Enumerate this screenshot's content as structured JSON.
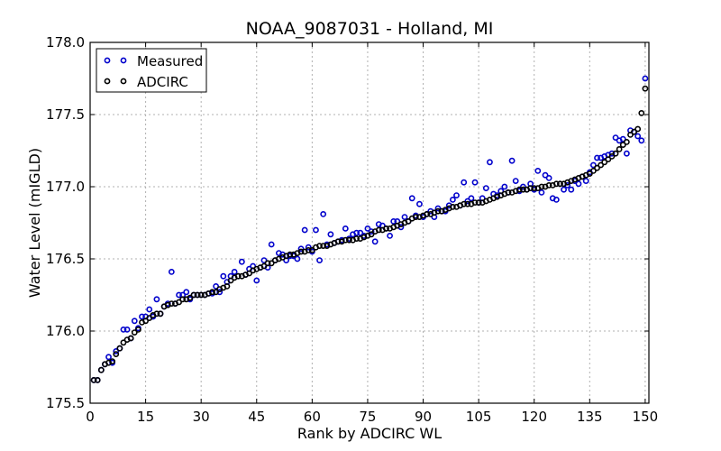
{
  "chart_data": {
    "type": "scatter",
    "title": "NOAA_9087031 - Holland, MI",
    "xlabel": "Rank by ADCIRC WL",
    "ylabel": "Water Level (mIGLD)",
    "xlim": [
      0,
      151
    ],
    "ylim": [
      175.5,
      178.0
    ],
    "xticks": [
      0,
      15,
      30,
      45,
      60,
      75,
      90,
      105,
      120,
      135,
      150
    ],
    "yticks": [
      175.5,
      176.0,
      176.5,
      177.0,
      177.5,
      178.0
    ],
    "ytick_labels": [
      "175.5",
      "176.0",
      "176.5",
      "177.0",
      "177.5",
      "178.0"
    ],
    "grid": true,
    "legend_position": "top-left",
    "series": [
      {
        "name": "Measured",
        "color": "#0000cc",
        "marker": "open-circle",
        "x": [
          1,
          2,
          3,
          4,
          5,
          6,
          7,
          8,
          9,
          10,
          11,
          12,
          13,
          14,
          15,
          16,
          17,
          18,
          19,
          20,
          21,
          22,
          23,
          24,
          25,
          26,
          27,
          28,
          29,
          30,
          31,
          32,
          33,
          34,
          35,
          36,
          37,
          38,
          39,
          40,
          41,
          42,
          43,
          44,
          45,
          46,
          47,
          48,
          49,
          50,
          51,
          52,
          53,
          54,
          55,
          56,
          57,
          58,
          59,
          60,
          61,
          62,
          63,
          64,
          65,
          66,
          67,
          68,
          69,
          70,
          71,
          72,
          73,
          74,
          75,
          76,
          77,
          78,
          79,
          80,
          81,
          82,
          83,
          84,
          85,
          86,
          87,
          88,
          89,
          90,
          91,
          92,
          93,
          94,
          95,
          96,
          97,
          98,
          99,
          100,
          101,
          102,
          103,
          104,
          105,
          106,
          107,
          108,
          109,
          110,
          111,
          112,
          113,
          114,
          115,
          116,
          117,
          118,
          119,
          120,
          121,
          122,
          123,
          124,
          125,
          126,
          127,
          128,
          129,
          130,
          131,
          132,
          133,
          134,
          135,
          136,
          137,
          138,
          139,
          140,
          141,
          142,
          143,
          144,
          145,
          146,
          147,
          148,
          149,
          150
        ],
        "values": [
          175.66,
          175.66,
          175.73,
          175.77,
          175.82,
          175.78,
          175.86,
          175.88,
          176.01,
          176.01,
          175.95,
          176.07,
          176.02,
          176.1,
          176.1,
          176.15,
          176.1,
          176.22,
          176.12,
          176.17,
          176.19,
          176.41,
          176.19,
          176.25,
          176.25,
          176.27,
          176.22,
          176.25,
          176.25,
          176.25,
          176.25,
          176.26,
          176.26,
          176.31,
          176.27,
          176.38,
          176.34,
          176.38,
          176.41,
          176.38,
          176.48,
          176.39,
          176.43,
          176.45,
          176.35,
          176.44,
          176.49,
          176.44,
          176.6,
          176.49,
          176.54,
          176.53,
          176.49,
          176.52,
          176.52,
          176.5,
          176.57,
          176.7,
          176.58,
          176.55,
          176.7,
          176.49,
          176.81,
          176.6,
          176.67,
          176.61,
          176.62,
          176.63,
          176.71,
          176.64,
          176.67,
          176.68,
          176.68,
          176.66,
          176.71,
          176.69,
          176.62,
          176.74,
          176.73,
          176.71,
          176.66,
          176.76,
          176.76,
          176.72,
          176.79,
          176.76,
          176.92,
          176.8,
          176.88,
          176.79,
          176.81,
          176.83,
          176.79,
          176.85,
          176.83,
          176.83,
          176.87,
          176.91,
          176.94,
          176.87,
          177.03,
          176.9,
          176.92,
          177.03,
          176.89,
          176.92,
          176.99,
          177.17,
          176.95,
          176.94,
          176.97,
          177.0,
          176.96,
          177.18,
          177.04,
          176.97,
          177.0,
          176.98,
          177.02,
          176.98,
          177.11,
          176.96,
          177.08,
          177.06,
          176.92,
          176.91,
          177.02,
          176.98,
          177.01,
          176.98,
          177.04,
          177.02,
          177.07,
          177.04,
          177.1,
          177.15,
          177.2,
          177.2,
          177.21,
          177.22,
          177.23,
          177.34,
          177.32,
          177.33,
          177.23,
          177.39,
          177.38,
          177.35,
          177.32,
          177.75
        ]
      },
      {
        "name": "ADCIRC",
        "color": "#000000",
        "marker": "open-circle",
        "x": [
          1,
          2,
          3,
          4,
          5,
          6,
          7,
          8,
          9,
          10,
          11,
          12,
          13,
          14,
          15,
          16,
          17,
          18,
          19,
          20,
          21,
          22,
          23,
          24,
          25,
          26,
          27,
          28,
          29,
          30,
          31,
          32,
          33,
          34,
          35,
          36,
          37,
          38,
          39,
          40,
          41,
          42,
          43,
          44,
          45,
          46,
          47,
          48,
          49,
          50,
          51,
          52,
          53,
          54,
          55,
          56,
          57,
          58,
          59,
          60,
          61,
          62,
          63,
          64,
          65,
          66,
          67,
          68,
          69,
          70,
          71,
          72,
          73,
          74,
          75,
          76,
          77,
          78,
          79,
          80,
          81,
          82,
          83,
          84,
          85,
          86,
          87,
          88,
          89,
          90,
          91,
          92,
          93,
          94,
          95,
          96,
          97,
          98,
          99,
          100,
          101,
          102,
          103,
          104,
          105,
          106,
          107,
          108,
          109,
          110,
          111,
          112,
          113,
          114,
          115,
          116,
          117,
          118,
          119,
          120,
          121,
          122,
          123,
          124,
          125,
          126,
          127,
          128,
          129,
          130,
          131,
          132,
          133,
          134,
          135,
          136,
          137,
          138,
          139,
          140,
          141,
          142,
          143,
          144,
          145,
          146,
          147,
          148,
          149,
          150
        ],
        "values": [
          175.66,
          175.66,
          175.73,
          175.77,
          175.78,
          175.79,
          175.84,
          175.88,
          175.92,
          175.94,
          175.95,
          175.99,
          176.01,
          176.06,
          176.07,
          176.09,
          176.11,
          176.12,
          176.12,
          176.17,
          176.18,
          176.19,
          176.19,
          176.2,
          176.22,
          176.22,
          176.23,
          176.25,
          176.25,
          176.25,
          176.25,
          176.26,
          176.27,
          176.27,
          176.29,
          176.3,
          176.31,
          176.35,
          176.37,
          176.38,
          176.38,
          176.39,
          176.4,
          176.42,
          176.43,
          176.44,
          176.45,
          176.47,
          176.47,
          176.49,
          176.5,
          176.51,
          176.52,
          176.53,
          176.53,
          176.54,
          176.55,
          176.55,
          176.56,
          176.56,
          176.58,
          176.59,
          176.59,
          176.59,
          176.6,
          176.61,
          176.62,
          176.62,
          176.63,
          176.63,
          176.63,
          176.64,
          176.64,
          176.65,
          176.66,
          176.67,
          176.69,
          176.7,
          176.7,
          176.71,
          176.71,
          176.72,
          176.73,
          176.74,
          176.75,
          176.76,
          176.78,
          176.79,
          176.79,
          176.8,
          176.81,
          176.81,
          176.82,
          176.83,
          176.83,
          176.84,
          176.85,
          176.86,
          176.86,
          176.87,
          176.88,
          176.88,
          176.88,
          176.89,
          176.89,
          176.89,
          176.9,
          176.91,
          176.92,
          176.93,
          176.94,
          176.95,
          176.96,
          176.96,
          176.97,
          176.98,
          176.98,
          176.98,
          176.99,
          176.99,
          176.99,
          177.0,
          177.0,
          177.01,
          177.01,
          177.02,
          177.02,
          177.02,
          177.03,
          177.04,
          177.05,
          177.06,
          177.07,
          177.08,
          177.09,
          177.11,
          177.13,
          177.15,
          177.17,
          177.19,
          177.21,
          177.23,
          177.26,
          177.29,
          177.31,
          177.36,
          177.38,
          177.4,
          177.51,
          177.68
        ]
      }
    ]
  }
}
